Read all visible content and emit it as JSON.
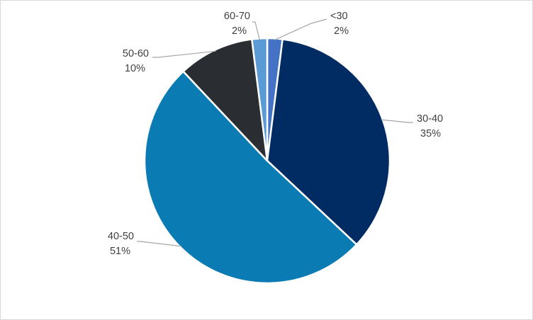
{
  "chart_data": {
    "type": "pie",
    "title": "",
    "slices": [
      {
        "label": "<30",
        "percent_label": "2%",
        "value": 2,
        "color": "#4472c4"
      },
      {
        "label": "30-40",
        "percent_label": "35%",
        "value": 35,
        "color": "#002c63"
      },
      {
        "label": "40-50",
        "percent_label": "51%",
        "value": 51,
        "color": "#0a7cb3"
      },
      {
        "label": "50-60",
        "percent_label": "10%",
        "value": 10,
        "color": "#2a2d32"
      },
      {
        "label": "60-70",
        "percent_label": "2%",
        "value": 2,
        "color": "#5b9bd5"
      }
    ],
    "start_angle_deg": 0,
    "direction": "clockwise",
    "data_labels": "outside-with-leader-lines",
    "legend": "none",
    "slice_border_color": "#ffffff",
    "leader_color": "#a6a6a6"
  }
}
